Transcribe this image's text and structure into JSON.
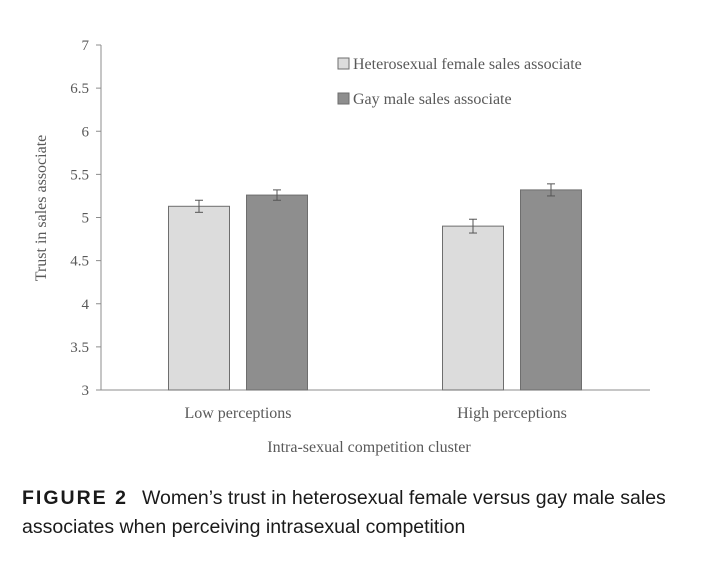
{
  "chart_data": {
    "type": "bar",
    "categories": [
      "Low perceptions",
      "High perceptions"
    ],
    "series": [
      {
        "name": "Heterosexual female sales associate",
        "values": [
          5.13,
          4.9
        ],
        "errors": [
          0.07,
          0.08
        ],
        "color": "#dcdcdc"
      },
      {
        "name": "Gay male sales associate",
        "values": [
          5.26,
          5.32
        ],
        "errors": [
          0.06,
          0.07
        ],
        "color": "#8e8e8e"
      }
    ],
    "title": "",
    "xlabel": "Intra-sexual competition cluster",
    "ylabel": "Trust in sales associate",
    "ylim": [
      3,
      7
    ],
    "yticks": [
      "3",
      "3.5",
      "4",
      "4.5",
      "5",
      "5.5",
      "6",
      "6.5",
      "7"
    ],
    "grid": false,
    "legend_position": "top-right"
  },
  "caption": {
    "label": "FIGURE 2",
    "text": "Women’s trust in heterosexual female versus gay male sales associates when perceiving intrasexual competition"
  }
}
